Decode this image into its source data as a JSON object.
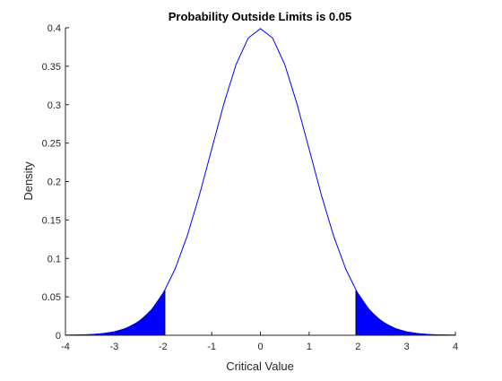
{
  "chart_data": {
    "type": "line",
    "title": "Probability Outside Limits is 0.05",
    "xlabel": "Critical Value",
    "ylabel": "Density",
    "xlim": [
      -4,
      4
    ],
    "ylim": [
      0,
      0.4
    ],
    "x_ticks": [
      -4,
      -3,
      -2,
      -1,
      0,
      1,
      2,
      3,
      4
    ],
    "x_tick_labels": [
      "-4",
      "-3",
      "-2",
      "-1",
      "0",
      "1",
      "2",
      "3",
      "4"
    ],
    "y_ticks": [
      0,
      0.05,
      0.1,
      0.15,
      0.2,
      0.25,
      0.3,
      0.35,
      0.4
    ],
    "y_tick_labels": [
      "0",
      "0.05",
      "0.1",
      "0.15",
      "0.2",
      "0.25",
      "0.3",
      "0.35",
      "0.4"
    ],
    "grid": false,
    "series": [
      {
        "color": "#0000ff",
        "x": [
          -4.0,
          -3.75,
          -3.5,
          -3.25,
          -3.0,
          -2.75,
          -2.5,
          -2.25,
          -2.0,
          -1.75,
          -1.5,
          -1.25,
          -1.0,
          -0.75,
          -0.5,
          -0.25,
          0.0,
          0.25,
          0.5,
          0.75,
          1.0,
          1.25,
          1.5,
          1.75,
          2.0,
          2.25,
          2.5,
          2.75,
          3.0,
          3.25,
          3.5,
          3.75,
          4.0
        ],
        "values": [
          0.0001,
          0.0004,
          0.0009,
          0.002,
          0.0044,
          0.0091,
          0.0175,
          0.0317,
          0.054,
          0.0863,
          0.1295,
          0.1826,
          0.242,
          0.3011,
          0.3521,
          0.3867,
          0.3989,
          0.3867,
          0.3521,
          0.3011,
          0.242,
          0.1826,
          0.1295,
          0.0863,
          0.054,
          0.0317,
          0.0175,
          0.0091,
          0.0044,
          0.002,
          0.0009,
          0.0004,
          0.0001
        ]
      }
    ],
    "shaded_regions": [
      {
        "color": "#0000ff",
        "x": [
          -4.0,
          -3.8,
          -3.6,
          -3.4,
          -3.2,
          -3.0,
          -2.8,
          -2.6,
          -2.4,
          -2.2,
          -1.96
        ],
        "values": [
          0.0001,
          0.0003,
          0.0006,
          0.0012,
          0.0024,
          0.0044,
          0.0079,
          0.0136,
          0.0224,
          0.0355,
          0.0584
        ]
      },
      {
        "color": "#0000ff",
        "x": [
          1.96,
          2.2,
          2.4,
          2.6,
          2.8,
          3.0,
          3.2,
          3.4,
          3.6,
          3.8,
          4.0
        ],
        "values": [
          0.0584,
          0.0355,
          0.0224,
          0.0136,
          0.0079,
          0.0044,
          0.0024,
          0.0012,
          0.0006,
          0.0003,
          0.0001
        ]
      }
    ]
  }
}
